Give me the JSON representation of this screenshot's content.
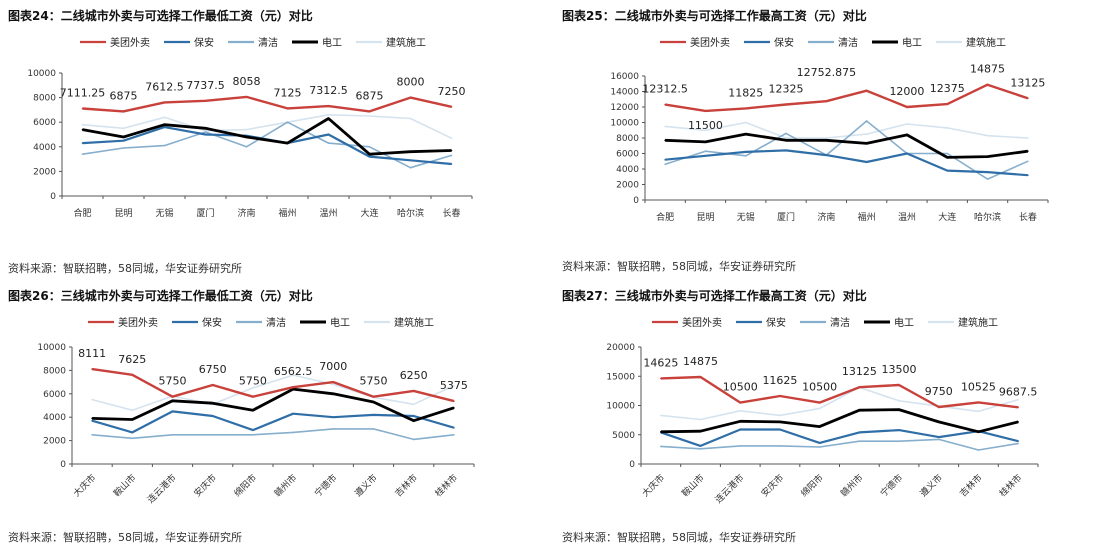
{
  "colors": {
    "美团外卖": "#c8413b",
    "保安": "#2f6ea6",
    "清洁": "#86aecd",
    "电工": "#000000",
    "建筑施工": "#d5e3ef"
  },
  "chart_data": [
    {
      "type": "line",
      "title": "图表24：二线城市外卖与可选择工作最低工资（元）对比",
      "source": "资料来源：智联招聘，58同城，华安证券研究所",
      "categories": [
        "合肥",
        "昆明",
        "无锡",
        "厦门",
        "济南",
        "福州",
        "温州",
        "大连",
        "哈尔滨",
        "长春"
      ],
      "ylim": [
        0,
        10000
      ],
      "yticks": [
        0,
        2000,
        4000,
        6000,
        8000,
        10000
      ],
      "legend": "top",
      "grid": false,
      "series": [
        {
          "name": "美团外卖",
          "values": [
            7111.25,
            6875,
            7612.5,
            7737.5,
            8058,
            7125,
            7312.5,
            6875,
            8000,
            7250
          ],
          "labels": [
            "7111.25",
            "6875",
            "7612.5",
            "7737.5",
            "8058",
            "7125",
            "7312.5",
            "6875",
            "8000",
            "7250"
          ]
        },
        {
          "name": "保安",
          "values": [
            4300,
            4500,
            5600,
            5000,
            4900,
            4300,
            5000,
            3200,
            2900,
            2600
          ]
        },
        {
          "name": "清洁",
          "values": [
            3400,
            3900,
            4100,
            5200,
            4000,
            6000,
            4300,
            4000,
            2300,
            3300
          ]
        },
        {
          "name": "电工",
          "values": [
            5400,
            4800,
            5800,
            5500,
            4800,
            4300,
            6300,
            3400,
            3600,
            3700
          ]
        },
        {
          "name": "建筑施工",
          "values": [
            5800,
            5500,
            6400,
            5300,
            5400,
            6000,
            6600,
            6500,
            6300,
            4700
          ]
        }
      ]
    },
    {
      "type": "line",
      "title": "图表25：二线城市外卖与可选择工作最高工资（元）对比",
      "source": "资料来源：智联招聘，58同城，华安证券研究所",
      "categories": [
        "合肥",
        "昆明",
        "无锡",
        "厦门",
        "济南",
        "福州",
        "温州",
        "大连",
        "哈尔滨",
        "长春"
      ],
      "ylim": [
        0,
        16000
      ],
      "yticks": [
        0,
        2000,
        4000,
        6000,
        8000,
        10000,
        12000,
        14000,
        16000
      ],
      "legend": "top",
      "grid": false,
      "series": [
        {
          "name": "美团外卖",
          "values": [
            12312.5,
            11500,
            11825,
            12325,
            12752.875,
            14100,
            12000,
            12375,
            14875,
            13125
          ],
          "labels": [
            "12312.5",
            "11500",
            "11825",
            "12325",
            "12752.875",
            "",
            "12000",
            "12375",
            "14875",
            "13125"
          ]
        },
        {
          "name": "保安",
          "values": [
            5200,
            5700,
            6200,
            6400,
            5800,
            4900,
            6000,
            3800,
            3600,
            3200
          ]
        },
        {
          "name": "清洁",
          "values": [
            4600,
            6300,
            5700,
            8600,
            5800,
            10200,
            6000,
            6000,
            2700,
            5000
          ]
        },
        {
          "name": "电工",
          "values": [
            7700,
            7500,
            8500,
            7700,
            7700,
            7300,
            8400,
            5500,
            5600,
            6300
          ]
        },
        {
          "name": "建筑施工",
          "values": [
            9500,
            9000,
            10000,
            8000,
            8000,
            8500,
            9800,
            9300,
            8300,
            8000
          ]
        }
      ]
    },
    {
      "type": "line",
      "title": "图表26：三线城市外卖与可选择工作最低工资（元）对比",
      "source": "资料来源：智联招聘，58同城，华安证券研究所",
      "categories": [
        "大庆市",
        "鞍山市",
        "连云港市",
        "安庆市",
        "绵阳市",
        "赣州市",
        "宁德市",
        "遵义市",
        "吉林市",
        "桂林市"
      ],
      "ylim": [
        0,
        10000
      ],
      "yticks": [
        0,
        2000,
        4000,
        6000,
        8000,
        10000
      ],
      "legend": "top",
      "grid": false,
      "series": [
        {
          "name": "美团外卖",
          "values": [
            8111,
            7625,
            5750,
            6750,
            5750,
            6562.5,
            7000,
            5750,
            6250,
            5375
          ],
          "labels": [
            "8111",
            "7625",
            "5750",
            "6750",
            "5750",
            "6562.5",
            "7000",
            "5750",
            "6250",
            "5375"
          ]
        },
        {
          "name": "保安",
          "values": [
            3700,
            2700,
            4500,
            4100,
            2900,
            4300,
            4000,
            4200,
            4100,
            3100
          ]
        },
        {
          "name": "清洁",
          "values": [
            2500,
            2200,
            2500,
            2500,
            2500,
            2700,
            3000,
            3000,
            2100,
            2500
          ]
        },
        {
          "name": "电工",
          "values": [
            3900,
            3800,
            5400,
            5200,
            4600,
            6400,
            6000,
            5300,
            3700,
            4800
          ]
        },
        {
          "name": "建筑施工",
          "values": [
            5500,
            4600,
            5800,
            5100,
            6500,
            7600,
            6800,
            5700,
            5100,
            6700
          ]
        }
      ]
    },
    {
      "type": "line",
      "title": "图表27：三线城市外卖与可选择工作最高工资（元）对比",
      "source": "资料来源：智联招聘，58同城，华安证券研究所",
      "categories": [
        "大庆市",
        "鞍山市",
        "连云港市",
        "安庆市",
        "绵阳市",
        "赣州市",
        "宁德市",
        "遵义市",
        "吉林市",
        "桂林市"
      ],
      "ylim": [
        0,
        20000
      ],
      "yticks": [
        0,
        5000,
        10000,
        15000,
        20000
      ],
      "legend": "top",
      "grid": false,
      "series": [
        {
          "name": "美团外卖",
          "values": [
            14625,
            14875,
            10500,
            11625,
            10500,
            13125,
            13500,
            9750,
            10525,
            9687.5
          ],
          "labels": [
            "14625",
            "14875",
            "10500",
            "11625",
            "10500",
            "13125",
            "13500",
            "9750",
            "10525",
            "9687.5"
          ]
        },
        {
          "name": "保安",
          "values": [
            5400,
            3100,
            5900,
            5900,
            3600,
            5400,
            5800,
            4600,
            5600,
            3900
          ]
        },
        {
          "name": "清洁",
          "values": [
            3000,
            2600,
            3100,
            3100,
            2900,
            3900,
            3900,
            4200,
            2400,
            3500
          ]
        },
        {
          "name": "电工",
          "values": [
            5500,
            5600,
            7300,
            7200,
            6400,
            9200,
            9300,
            7200,
            5500,
            7200
          ]
        },
        {
          "name": "建筑施工",
          "values": [
            8300,
            7600,
            9100,
            8300,
            9500,
            13100,
            10800,
            9900,
            9000,
            11000
          ]
        }
      ]
    }
  ]
}
